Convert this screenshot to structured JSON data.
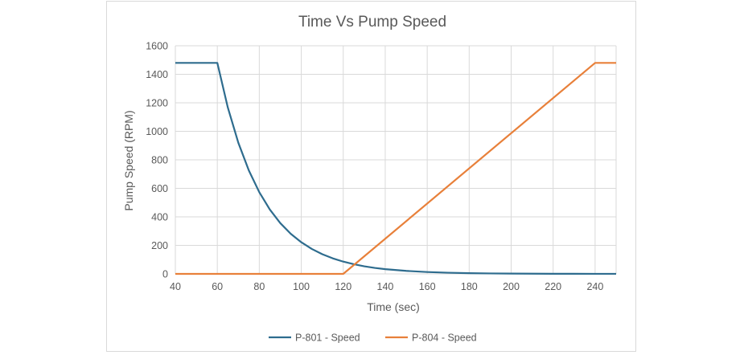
{
  "chart_data": {
    "type": "line",
    "title": "Time Vs Pump Speed",
    "xlabel": "Time (sec)",
    "ylabel": "Pump Speed (RPM)",
    "xlim": [
      40,
      250
    ],
    "ylim": [
      0,
      1600
    ],
    "x_ticks": [
      40,
      60,
      80,
      100,
      120,
      140,
      160,
      180,
      200,
      220,
      240
    ],
    "y_ticks": [
      0,
      200,
      400,
      600,
      800,
      1000,
      1200,
      1400,
      1600
    ],
    "grid": true,
    "legend_position": "bottom",
    "series": [
      {
        "name": "P-801 - Speed",
        "color": "#2e6c8e",
        "x": [
          40,
          60,
          65,
          70,
          75,
          80,
          85,
          90,
          95,
          100,
          105,
          110,
          115,
          120,
          125,
          130,
          135,
          140,
          150,
          160,
          170,
          180,
          190,
          200,
          210,
          220,
          230,
          240,
          250
        ],
        "y": [
          1480,
          1480,
          1167,
          920,
          726,
          573,
          452,
          356,
          281,
          222,
          175,
          138,
          109,
          86,
          68,
          53,
          42,
          33,
          21,
          13,
          8,
          5,
          3.2,
          2,
          1.3,
          0.8,
          0.5,
          0.3,
          0.2
        ]
      },
      {
        "name": "P-804 - Speed",
        "color": "#e8803a",
        "x": [
          40,
          120,
          240,
          250
        ],
        "y": [
          0,
          0,
          1480,
          1480
        ]
      }
    ]
  }
}
